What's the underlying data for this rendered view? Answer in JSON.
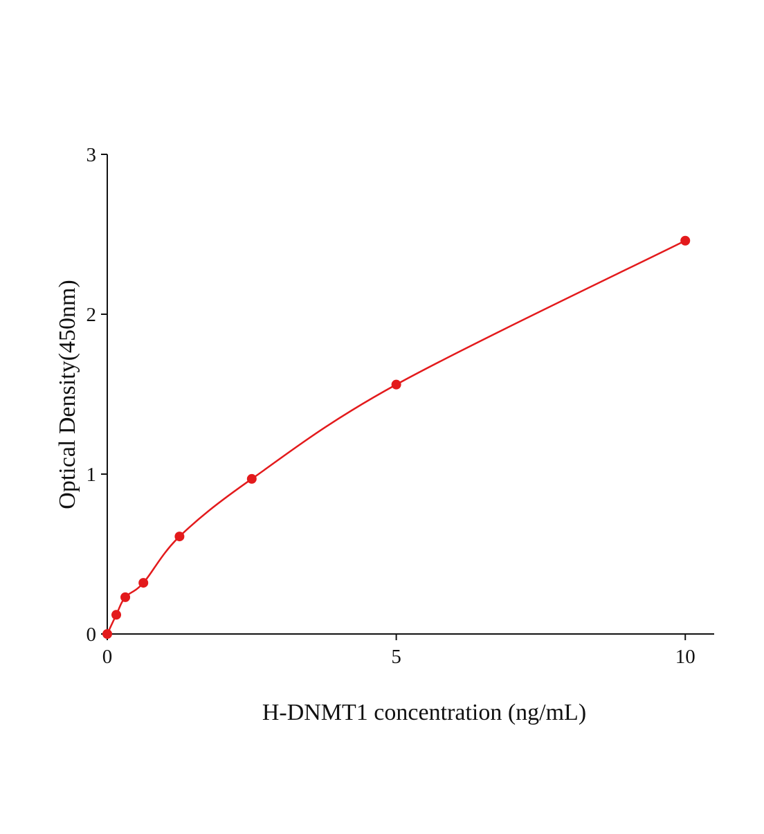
{
  "chart_data": {
    "type": "scatter",
    "x_label": "H-DNMT1 concentration (ng/mL)",
    "y_label": "Optical Density(450nm)",
    "x": [
      0,
      0.156,
      0.312,
      0.625,
      1.25,
      2.5,
      5,
      10
    ],
    "values": [
      0,
      0.12,
      0.23,
      0.32,
      0.61,
      0.97,
      1.56,
      2.46
    ],
    "color": "#e31a1c",
    "fit_line": true,
    "xlim": [
      0,
      10.5
    ],
    "xticks": [
      0,
      5,
      10
    ],
    "ylim": [
      0,
      3
    ],
    "yticks": [
      0,
      1,
      2,
      3
    ],
    "grid": false
  }
}
